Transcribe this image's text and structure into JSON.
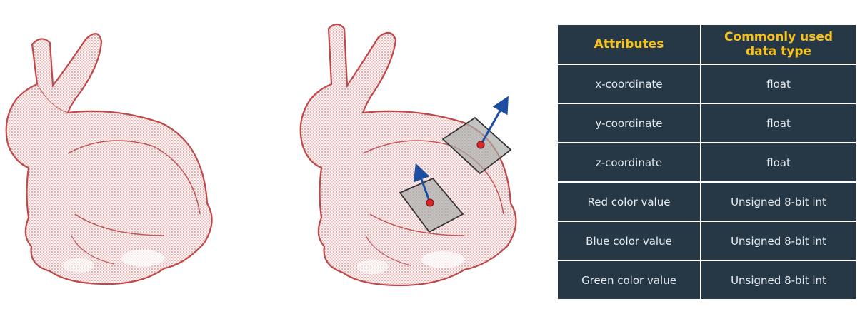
{
  "table": {
    "headers": {
      "attributes": "Attributes",
      "data_type_line1": "Commonly used",
      "data_type_line2": "data type"
    },
    "rows": [
      {
        "attribute": "x-coordinate",
        "type": "float"
      },
      {
        "attribute": "y-coordinate",
        "type": "float"
      },
      {
        "attribute": "z-coordinate",
        "type": "float"
      },
      {
        "attribute": "Red color value",
        "type": "Unsigned 8-bit int"
      },
      {
        "attribute": "Blue color value",
        "type": "Unsigned 8-bit int"
      },
      {
        "attribute": "Green color value",
        "type": "Unsigned 8-bit int"
      }
    ]
  },
  "colors": {
    "point_cloud": "#b83a3a",
    "table_background": "#263746",
    "header_text": "#f7c21a",
    "cell_text": "#e6ebef",
    "normal_arrow": "#1c4fa1",
    "surface_patch": "#a9aca9",
    "sample_point": "#d9252a"
  },
  "icons": {
    "point_cloud": "stanford-bunny-point-cloud",
    "normal": "surface-normal-arrow"
  }
}
